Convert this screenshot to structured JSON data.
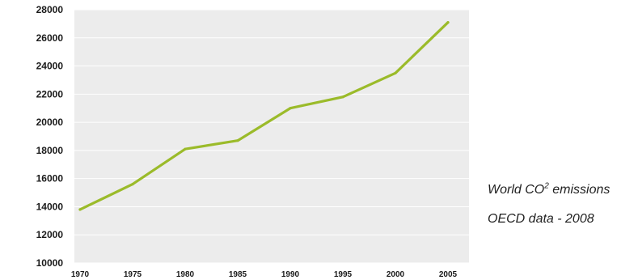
{
  "chart_data": {
    "type": "line",
    "x": [
      1970,
      1975,
      1980,
      1985,
      1990,
      1995,
      2000,
      2005
    ],
    "x_tick_labels": [
      "1970",
      "1975",
      "1980",
      "1985",
      "1990",
      "1995",
      "2000",
      "2005"
    ],
    "series": [
      {
        "values": [
          13800,
          15600,
          18100,
          18700,
          21000,
          21800,
          23500,
          27100
        ],
        "color": "#9bbb2a"
      }
    ],
    "ylim": [
      10000,
      28000
    ],
    "y_ticks": [
      10000,
      12000,
      14000,
      16000,
      18000,
      20000,
      22000,
      24000,
      26000,
      28000
    ],
    "y_tick_labels": [
      "10000",
      "12000",
      "14000",
      "16000",
      "18000",
      "20000",
      "22000",
      "24000",
      "26000",
      "28000"
    ],
    "grid": true,
    "plot_background": "#ececec",
    "grid_color": "#ffffff"
  },
  "caption": {
    "line1_prefix": "World CO",
    "line1_sup": "2",
    "line1_suffix": " emissions",
    "line2": "OECD data - 2008"
  }
}
